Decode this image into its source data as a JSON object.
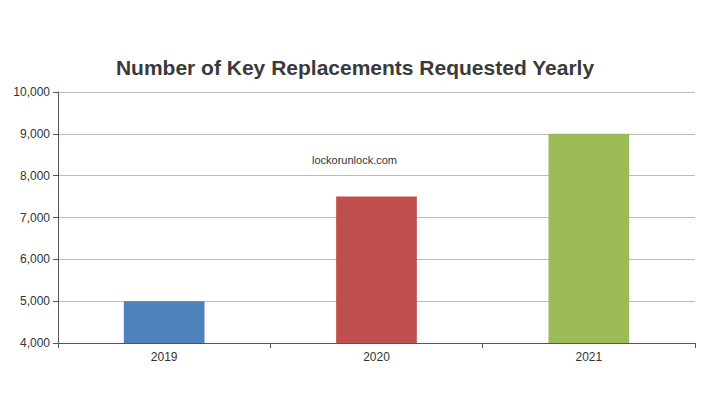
{
  "chart_data": {
    "type": "bar",
    "title": "Number of Key Replacements Requested Yearly",
    "categories": [
      "2019",
      "2020",
      "2021"
    ],
    "values": [
      5000,
      7500,
      9000
    ],
    "colors": [
      "#4f81bd",
      "#c0504d",
      "#9bbb59"
    ],
    "ylim": [
      4000,
      10000
    ],
    "yticks": [
      {
        "value": 4000,
        "label": "4,000"
      },
      {
        "value": 5000,
        "label": "5,000"
      },
      {
        "value": 6000,
        "label": "6,000"
      },
      {
        "value": 7000,
        "label": "7,000"
      },
      {
        "value": 8000,
        "label": "8,000"
      },
      {
        "value": 9000,
        "label": "9,000"
      },
      {
        "value": 10000,
        "label": "10,000"
      }
    ],
    "grid": true,
    "annotation": "lockorunlock.com"
  }
}
